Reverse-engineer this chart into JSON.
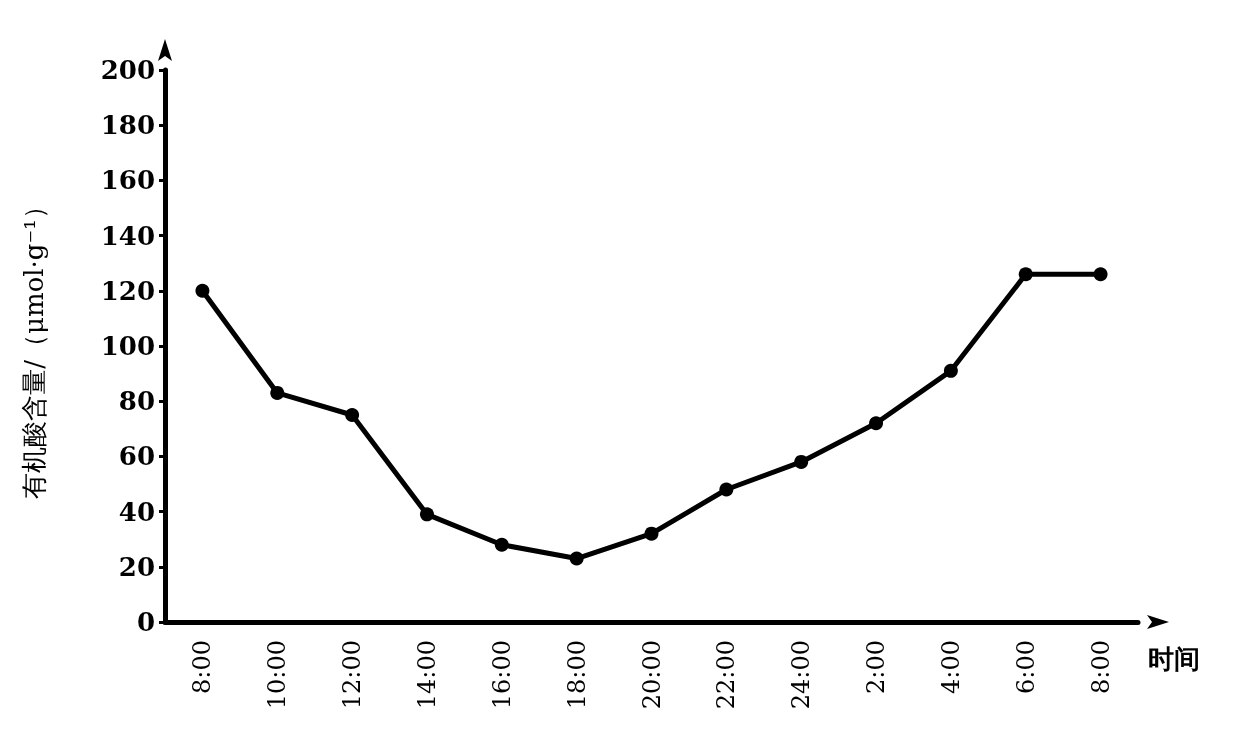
{
  "chart_data": {
    "type": "line",
    "xlabel": "时间",
    "ylabel": "有机酸含量/（μmol·g⁻¹）",
    "categories": [
      "8:00",
      "10:00",
      "12:00",
      "14:00",
      "16:00",
      "18:00",
      "20:00",
      "22:00",
      "24:00",
      "2:00",
      "4:00",
      "6:00",
      "8:00"
    ],
    "series": [
      {
        "color": "#000000",
        "values": [
          120,
          83,
          75,
          39,
          28,
          23,
          32,
          48,
          58,
          72,
          91,
          126,
          126
        ]
      }
    ],
    "ylim": [
      0,
      200
    ],
    "yticks": [
      0,
      20,
      40,
      60,
      80,
      100,
      120,
      140,
      160,
      180,
      200
    ],
    "grid": false,
    "marker": "circle",
    "line_style": "solid"
  }
}
